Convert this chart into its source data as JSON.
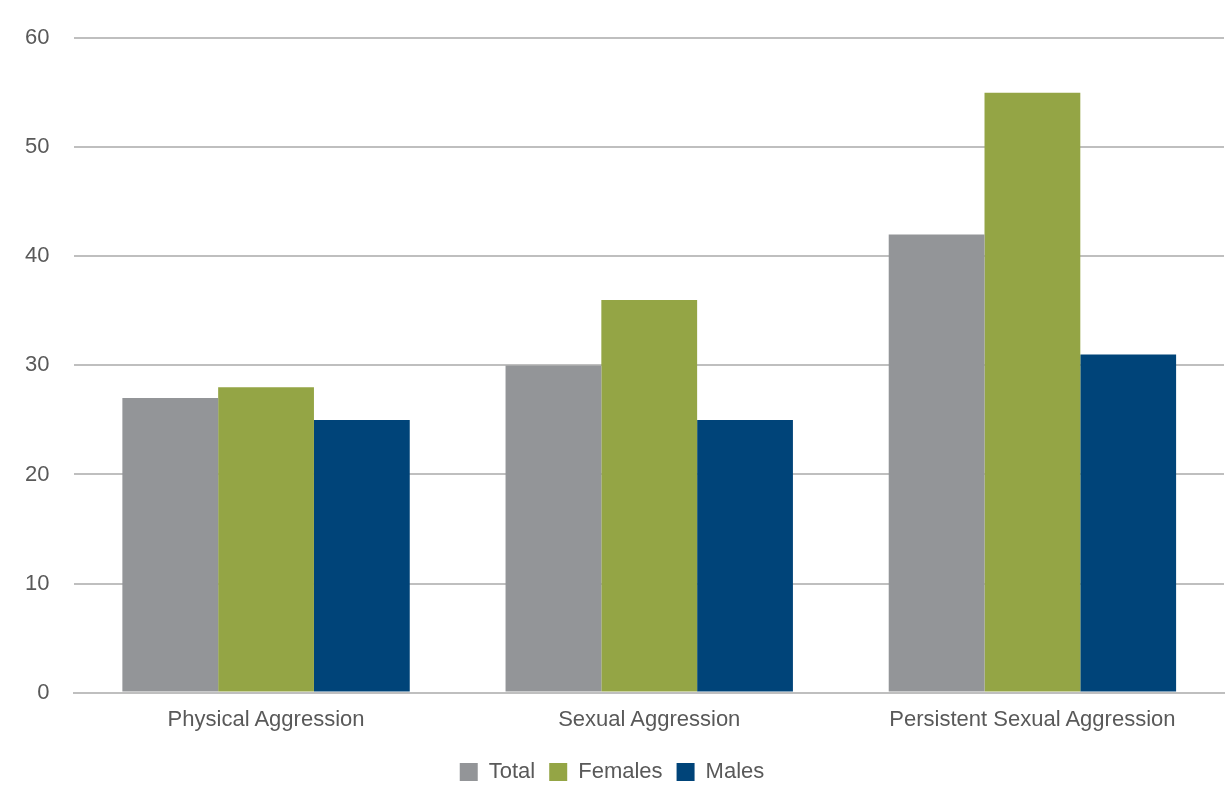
{
  "chart_data": {
    "type": "bar",
    "categories": [
      "Physical Aggression",
      "Sexual Aggression",
      "Persistent Sexual Aggression"
    ],
    "series": [
      {
        "name": "Total",
        "color": "#939598",
        "values": [
          27,
          30,
          42
        ]
      },
      {
        "name": "Females",
        "color": "#94a545",
        "values": [
          28,
          36,
          55
        ]
      },
      {
        "name": "Males",
        "color": "#004479",
        "values": [
          25,
          25,
          31
        ]
      }
    ],
    "ylim": [
      0,
      60
    ],
    "yticks": [
      0,
      10,
      20,
      30,
      40,
      50,
      60
    ],
    "grid": "y",
    "legend": "bottom"
  }
}
